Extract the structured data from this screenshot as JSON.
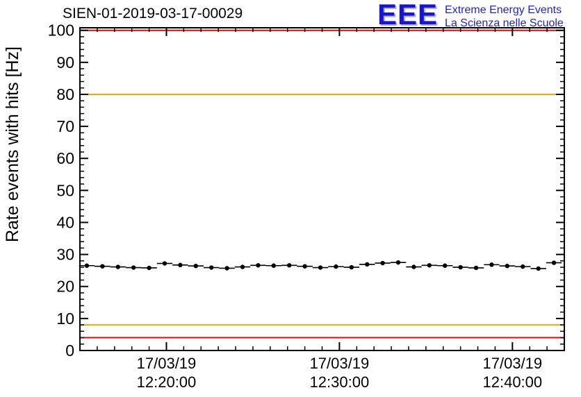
{
  "title": "SIEN-01-2019-03-17-00029",
  "logo": {
    "acronym": "EEE",
    "line1": "Extreme Energy Events",
    "line2": "La Scienza nelle Scuole",
    "color": "#2323cc"
  },
  "chart_data": {
    "type": "scatter",
    "title": "SIEN-01-2019-03-17-00029",
    "xlabel": "",
    "ylabel": "Rate events with hits [Hz]",
    "ylim": [
      0,
      100
    ],
    "yticks": [
      0,
      10,
      20,
      30,
      40,
      50,
      60,
      70,
      80,
      90,
      100
    ],
    "xlim_minutes": [
      15,
      43
    ],
    "xticks": [
      {
        "minute": 20,
        "date": "17/03/19",
        "time": "12:20:00"
      },
      {
        "minute": 30,
        "date": "17/03/19",
        "time": "12:30:00"
      },
      {
        "minute": 40,
        "date": "17/03/19",
        "time": "12:40:00"
      }
    ],
    "x_minutes": [
      15.4,
      16.3,
      17.2,
      18.1,
      19.0,
      19.9,
      20.8,
      21.7,
      22.6,
      23.5,
      24.4,
      25.3,
      26.2,
      27.1,
      28.0,
      28.9,
      29.8,
      30.7,
      31.6,
      32.5,
      33.4,
      34.3,
      35.2,
      36.1,
      37.0,
      37.9,
      38.8,
      39.7,
      40.6,
      41.5,
      42.4
    ],
    "values": [
      26.5,
      26.3,
      26.1,
      25.9,
      25.8,
      27.2,
      26.7,
      26.4,
      25.9,
      25.7,
      26.1,
      26.6,
      26.5,
      26.6,
      26.3,
      25.9,
      26.2,
      26.0,
      26.9,
      27.3,
      27.5,
      26.1,
      26.6,
      26.5,
      26.0,
      25.8,
      26.8,
      26.4,
      26.2,
      25.6,
      27.4
    ],
    "y_err": 0.6,
    "x_err_minutes": 0.45,
    "marker_color": "#000000",
    "threshold_lines": [
      {
        "value": 100,
        "color": "#ee0000"
      },
      {
        "value": 80,
        "color": "#ffa500"
      },
      {
        "value": 8,
        "color": "#ffa500"
      },
      {
        "value": 4,
        "color": "#ee0000"
      }
    ],
    "grid": false,
    "legend": "none"
  }
}
